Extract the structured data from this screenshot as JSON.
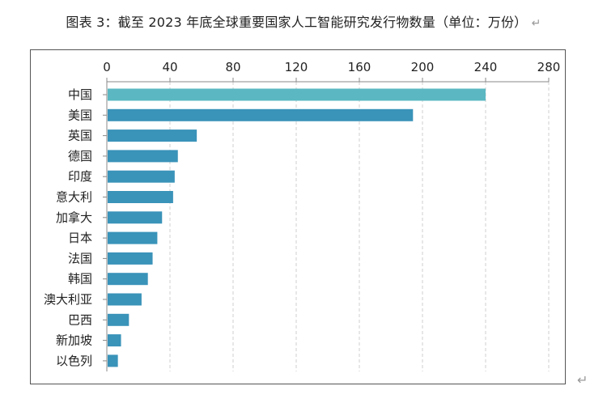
{
  "title": "图表 3：截至 2023 年底全球重要国家人工智能研究发行物数量（单位：万份）",
  "title_mark": "↵",
  "corner_mark": "↵",
  "chart_data": {
    "type": "bar",
    "orientation": "horizontal",
    "title": "图表 3：截至 2023 年底全球重要国家人工智能研究发行物数量（单位：万份）",
    "xlabel": "",
    "ylabel": "",
    "xlim": [
      0,
      280
    ],
    "x_ticks": [
      0,
      40,
      80,
      120,
      160,
      200,
      240,
      280
    ],
    "x_axis_position": "top",
    "grid": true,
    "categories": [
      "中国",
      "美国",
      "英国",
      "德国",
      "印度",
      "意大利",
      "加拿大",
      "日本",
      "法国",
      "韩国",
      "澳大利亚",
      "巴西",
      "新加坡",
      "以色列"
    ],
    "values": [
      240,
      194,
      57,
      45,
      43,
      42,
      35,
      32,
      29,
      26,
      22,
      14,
      9,
      7
    ],
    "colors": {
      "highlight": "#5bb8c2",
      "bar": "#3a93b9",
      "grid": "#cfcfcf",
      "axis": "#888888"
    }
  }
}
